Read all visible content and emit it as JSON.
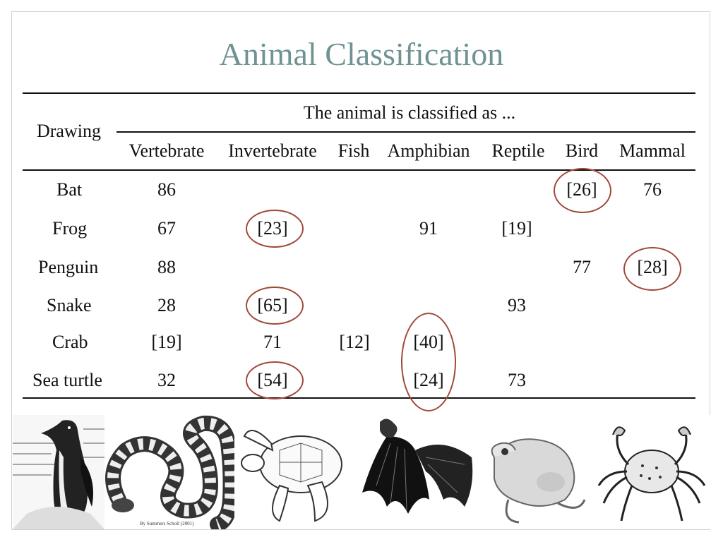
{
  "slide": {
    "title": "Animal Classification"
  },
  "table": {
    "row_header": "Drawing",
    "group_header": "The animal is classified as ...",
    "columns": [
      "Vertebrate",
      "Invertebrate",
      "Fish",
      "Amphibian",
      "Reptile",
      "Bird",
      "Mammal"
    ],
    "rows": [
      {
        "label": "Bat",
        "cells": [
          "86",
          "",
          "",
          "",
          "",
          "[26]",
          "76"
        ]
      },
      {
        "label": "Frog",
        "cells": [
          "67",
          "[23]",
          "",
          "91",
          "[19]",
          "",
          ""
        ]
      },
      {
        "label": "Penguin",
        "cells": [
          "88",
          "",
          "",
          "",
          "",
          "77",
          "[28]"
        ]
      },
      {
        "label": "Snake",
        "cells": [
          "28",
          "[65]",
          "",
          "",
          "93",
          "",
          ""
        ]
      },
      {
        "label": "Crab",
        "cells": [
          "[19]",
          "71",
          "[12]",
          "[40]",
          "",
          "",
          ""
        ]
      },
      {
        "label": "Sea turtle",
        "cells": [
          "32",
          "[54]",
          "",
          "[24]",
          "73",
          "",
          ""
        ]
      }
    ],
    "circle_color": "#a0493a"
  },
  "drawings": {
    "items": [
      "penguin-drawing",
      "snake-drawing",
      "sea-turtle-drawing",
      "bat-drawing",
      "frog-drawing",
      "crab-drawing"
    ],
    "credit": "By Summers Scholl (2001)"
  }
}
